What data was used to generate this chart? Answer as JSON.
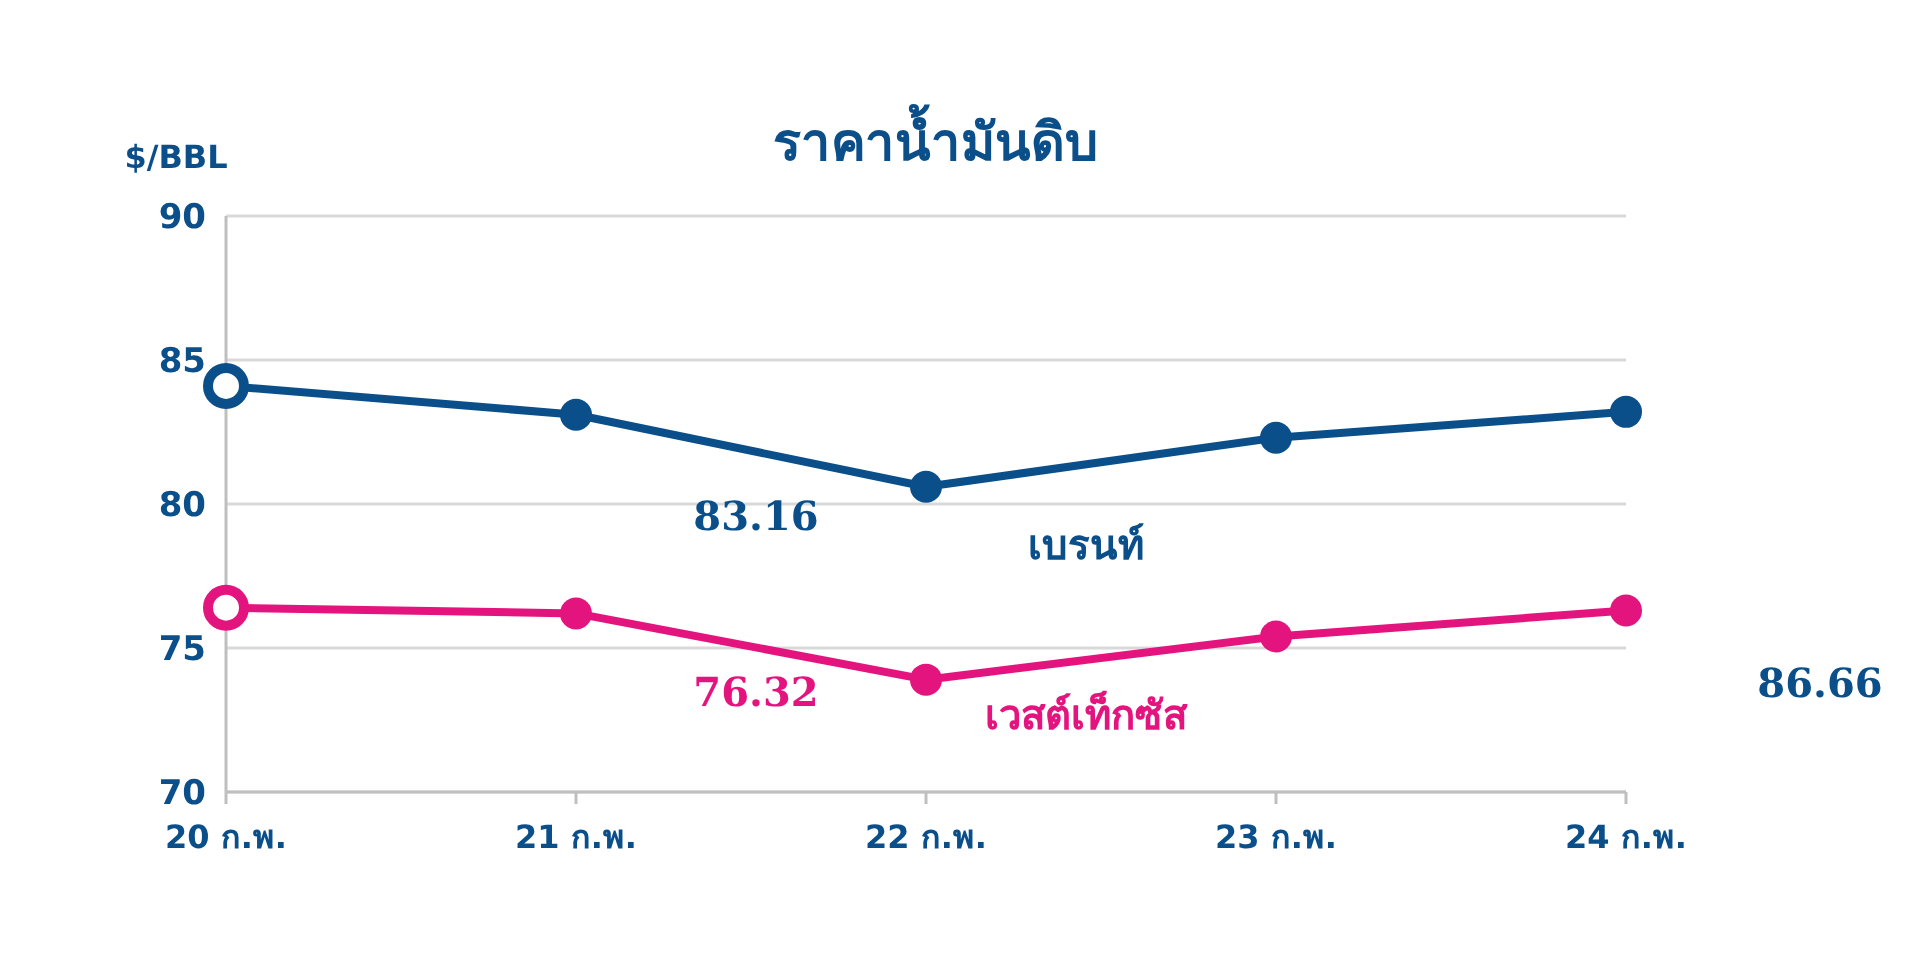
{
  "chart_data": {
    "type": "line",
    "title": "ราคาน้ำมันดิบ",
    "ylabel": "$/BBL",
    "categories": [
      "20 ก.พ.",
      "21 ก.พ.",
      "22 ก.พ.",
      "23 ก.พ.",
      "24 ก.พ."
    ],
    "series": [
      {
        "name": "เบรนท์",
        "color": "#0b4f8a",
        "values": [
          84.1,
          83.1,
          80.6,
          82.3,
          83.2
        ]
      },
      {
        "name": "เวสต์เท็กซัส",
        "color": "#e4147f",
        "values": [
          76.4,
          76.2,
          73.9,
          75.4,
          76.3
        ]
      }
    ],
    "annotations": [
      "83.16",
      "76.32",
      "86.66"
    ],
    "ylim": [
      70,
      90
    ],
    "yticks": [
      70,
      75,
      80,
      85,
      90
    ],
    "grid": "y",
    "marker": "circle",
    "line_style": "solid"
  }
}
